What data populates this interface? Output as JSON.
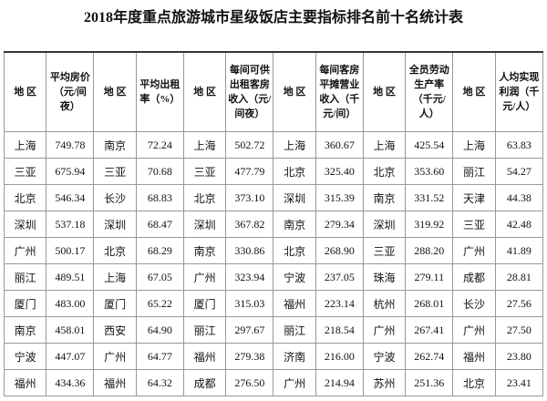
{
  "title": "2018年度重点旅游城市星级饭店主要指标排名前十名统计表",
  "table": {
    "header": [
      "地 区",
      "平均房价（元/间夜）",
      "地 区",
      "平均出租率（%）",
      "地 区",
      "每间可供出租客房收入（元/间夜）",
      "地 区",
      "每间客房平摊营业收入（千元/间）",
      "地 区",
      "全员劳动生产率（千元/人）",
      "地 区",
      "人均实现利润（千元/人）"
    ],
    "rows": [
      [
        "上海",
        "749.78",
        "南京",
        "72.24",
        "上海",
        "502.72",
        "上海",
        "360.67",
        "上海",
        "425.54",
        "上海",
        "63.83"
      ],
      [
        "三亚",
        "675.94",
        "三亚",
        "70.68",
        "三亚",
        "477.79",
        "北京",
        "325.40",
        "北京",
        "353.60",
        "丽江",
        "54.27"
      ],
      [
        "北京",
        "546.34",
        "长沙",
        "68.83",
        "北京",
        "373.10",
        "深圳",
        "315.39",
        "南京",
        "331.52",
        "天津",
        "44.38"
      ],
      [
        "深圳",
        "537.18",
        "深圳",
        "68.47",
        "深圳",
        "367.82",
        "南京",
        "279.34",
        "深圳",
        "319.92",
        "三亚",
        "42.48"
      ],
      [
        "广州",
        "500.17",
        "北京",
        "68.29",
        "南京",
        "330.86",
        "北京",
        "268.90",
        "三亚",
        "288.20",
        "广州",
        "41.89"
      ],
      [
        "丽江",
        "489.51",
        "上海",
        "67.05",
        "广州",
        "323.94",
        "宁波",
        "237.05",
        "珠海",
        "279.11",
        "成都",
        "28.81"
      ],
      [
        "厦门",
        "483.00",
        "厦门",
        "65.22",
        "厦门",
        "315.03",
        "福州",
        "223.14",
        "杭州",
        "268.01",
        "长沙",
        "27.56"
      ],
      [
        "南京",
        "458.01",
        "西安",
        "64.90",
        "丽江",
        "297.67",
        "丽江",
        "218.54",
        "广州",
        "267.41",
        "广州",
        "27.50"
      ],
      [
        "宁波",
        "447.07",
        "广州",
        "64.77",
        "福州",
        "279.38",
        "济南",
        "216.00",
        "宁波",
        "262.74",
        "福州",
        "23.80"
      ],
      [
        "福州",
        "434.36",
        "福州",
        "64.32",
        "成都",
        "276.50",
        "广州",
        "214.94",
        "苏州",
        "251.36",
        "北京",
        "23.41"
      ]
    ]
  }
}
